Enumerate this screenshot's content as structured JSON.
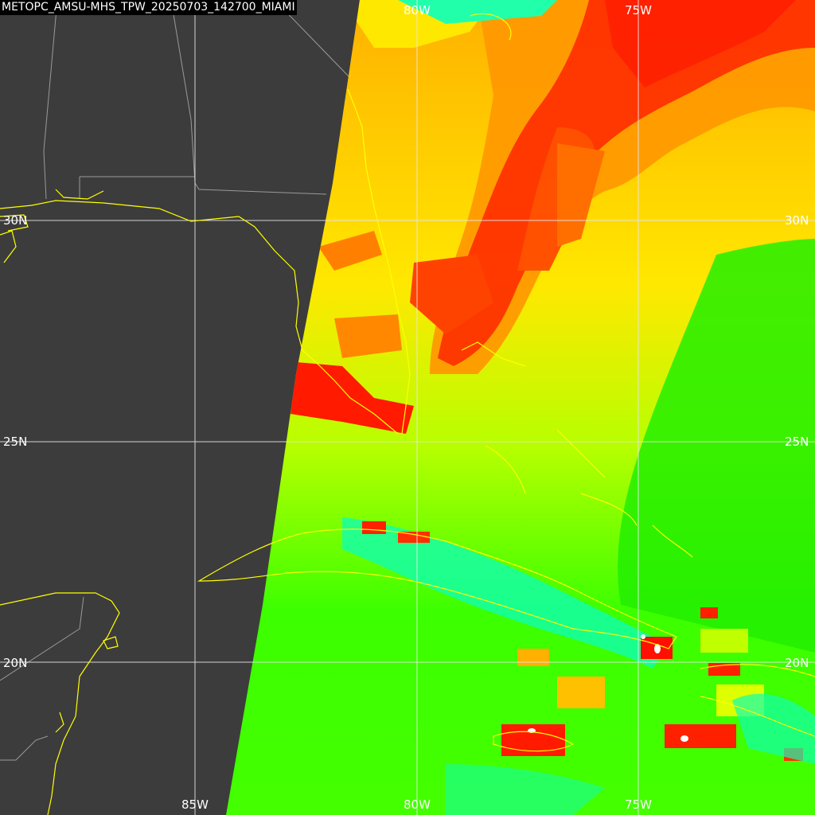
{
  "title": "METOPC_AMSU-MHS_TPW_20250703_142700_MIAMI",
  "graticule": {
    "lon_labels": [
      "85W",
      "80W",
      "75W"
    ],
    "lat_labels": [
      "30N",
      "25N",
      "20N"
    ],
    "line_color": "#e6e6e6"
  },
  "colors": {
    "background_land": "#3c3c3c",
    "coastline": "#ffff00",
    "political_border": "#9a9a9a",
    "tpw_scale": [
      "#00ff99",
      "#00ff00",
      "#88ff00",
      "#ffff00",
      "#ffa000",
      "#ff0000",
      "#ffffff"
    ]
  }
}
